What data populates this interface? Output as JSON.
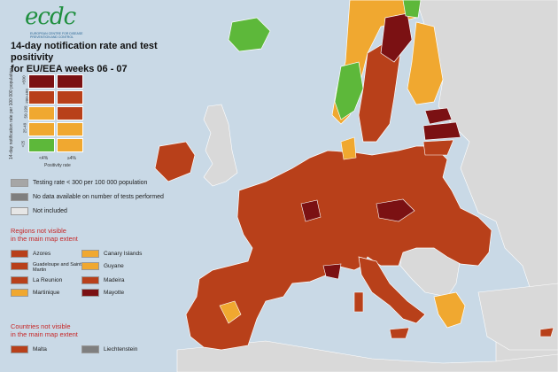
{
  "logo": {
    "word": "ecdc",
    "subtitle": "EUROPEAN CENTRE FOR DISEASE PREVENTION AND CONTROL"
  },
  "title": {
    "line1": "14-day notification rate and test positivity",
    "line2": "for EU/EEA weeks 06 - 07"
  },
  "matrix": {
    "rows": [
      ">500",
      "200-499",
      "50-199",
      "25-49",
      "<25"
    ],
    "cols": [
      "<4%",
      "≥4%"
    ],
    "y_axis_label": "14-day notification rate per 100 000 population",
    "x_axis_label": "Positivity rate",
    "colors": [
      [
        "#7b1113",
        "#7b1113"
      ],
      [
        "#b8401a",
        "#b8401a"
      ],
      [
        "#f0a830",
        "#b8401a"
      ],
      [
        "#f0a830",
        "#f0a830"
      ],
      [
        "#5db83a",
        "#f0a830"
      ]
    ]
  },
  "legend": {
    "testing_rate": {
      "label": "Testing rate < 300 per 100 000 population",
      "color": "#a6a6a6"
    },
    "no_data": {
      "label": "No data available on number of tests performed",
      "color": "#7f7f7f"
    },
    "not_included": {
      "label": "Not included",
      "color": "#e6e6e6"
    }
  },
  "regions_section": {
    "line1": "Regions not visible",
    "line2": "in the main map extent"
  },
  "regions": [
    {
      "name": "Azores",
      "color": "#b8401a"
    },
    {
      "name": "Canary Islands",
      "color": "#f0a830"
    },
    {
      "name": "Guadeloupe and Saint Martin",
      "color": "#b8401a"
    },
    {
      "name": "Guyane",
      "color": "#f0a830"
    },
    {
      "name": "La Reunion",
      "color": "#b8401a"
    },
    {
      "name": "Madeira",
      "color": "#b8401a"
    },
    {
      "name": "Martinique",
      "color": "#f0a830"
    },
    {
      "name": "Mayotte",
      "color": "#7b1113"
    }
  ],
  "countries_section": {
    "line1": "Countries not visible",
    "line2": "in the main map extent"
  },
  "countries": [
    {
      "name": "Malta",
      "color": "#b8401a"
    },
    {
      "name": "Liechtenstein",
      "color": "#7f7f7f"
    }
  ],
  "colors": {
    "sea": "#c9d9e6",
    "non_eu": "#d9d9d9",
    "dark_red": "#7b1113",
    "red": "#b8401a",
    "orange": "#f0a830",
    "green": "#5db83a"
  }
}
